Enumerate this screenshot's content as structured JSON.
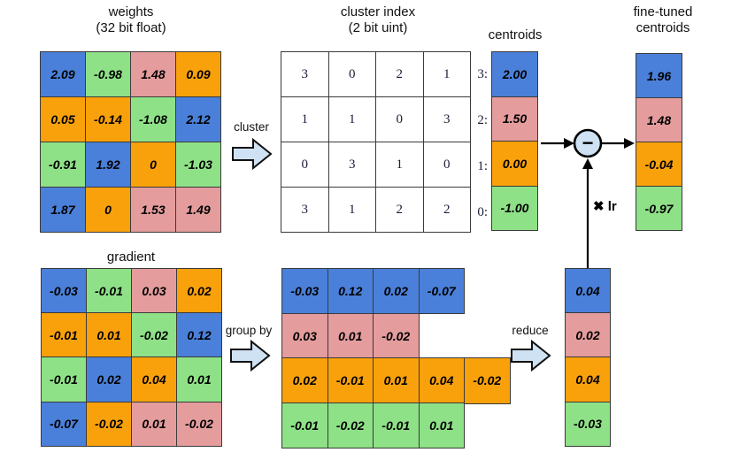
{
  "colors": {
    "blue": "#4a80d9",
    "green": "#8ee187",
    "pink": "#e49c9d",
    "orange": "#f9a10b",
    "arrow_fill": "#cfe2f3",
    "line": "#3a3a3a"
  },
  "titles": {
    "weights_line1": "weights",
    "weights_line2": "(32 bit float)",
    "cluster_line1": "cluster index",
    "cluster_line2": "(2 bit uint)",
    "centroids": "centroids",
    "finetuned_line1": "fine-tuned",
    "finetuned_line2": "centroids",
    "gradient": "gradient"
  },
  "arrow_labels": {
    "cluster": "cluster",
    "group_by": "group by",
    "reduce": "reduce",
    "lr": "✖ lr"
  },
  "operator": {
    "minus": "−"
  },
  "weights": {
    "values": [
      [
        "2.09",
        "-0.98",
        "1.48",
        "0.09"
      ],
      [
        "0.05",
        "-0.14",
        "-1.08",
        "2.12"
      ],
      [
        "-0.91",
        "1.92",
        "0",
        "-1.03"
      ],
      [
        "1.87",
        "0",
        "1.53",
        "1.49"
      ]
    ],
    "colors": [
      [
        "blue",
        "green",
        "pink",
        "orange"
      ],
      [
        "orange",
        "orange",
        "green",
        "blue"
      ],
      [
        "green",
        "blue",
        "orange",
        "green"
      ],
      [
        "blue",
        "orange",
        "pink",
        "pink"
      ]
    ]
  },
  "cluster_index": {
    "values": [
      [
        "3",
        "0",
        "2",
        "1"
      ],
      [
        "1",
        "1",
        "0",
        "3"
      ],
      [
        "0",
        "3",
        "1",
        "0"
      ],
      [
        "3",
        "1",
        "2",
        "2"
      ]
    ]
  },
  "centroids": {
    "indices": [
      "3:",
      "2:",
      "1:",
      "0:"
    ],
    "values": [
      "2.00",
      "1.50",
      "0.00",
      "-1.00"
    ],
    "colors": [
      "blue",
      "pink",
      "orange",
      "green"
    ]
  },
  "fine_tuned_centroids": {
    "values": [
      "1.96",
      "1.48",
      "-0.04",
      "-0.97"
    ],
    "colors": [
      "blue",
      "pink",
      "orange",
      "green"
    ]
  },
  "gradient": {
    "values": [
      [
        "-0.03",
        "-0.01",
        "0.03",
        "0.02"
      ],
      [
        "-0.01",
        "0.01",
        "-0.02",
        "0.12"
      ],
      [
        "-0.01",
        "0.02",
        "0.04",
        "0.01"
      ],
      [
        "-0.07",
        "-0.02",
        "0.01",
        "-0.02"
      ]
    ],
    "colors": [
      [
        "blue",
        "green",
        "pink",
        "orange"
      ],
      [
        "orange",
        "orange",
        "green",
        "blue"
      ],
      [
        "green",
        "blue",
        "orange",
        "green"
      ],
      [
        "blue",
        "orange",
        "pink",
        "pink"
      ]
    ]
  },
  "grouped_gradient": {
    "rows": [
      {
        "color": "blue",
        "values": [
          "-0.03",
          "0.12",
          "0.02",
          "-0.07"
        ]
      },
      {
        "color": "pink",
        "values": [
          "0.03",
          "0.01",
          "-0.02"
        ]
      },
      {
        "color": "orange",
        "values": [
          "0.02",
          "-0.01",
          "0.01",
          "0.04",
          "-0.02"
        ]
      },
      {
        "color": "green",
        "values": [
          "-0.01",
          "-0.02",
          "-0.01",
          "0.01"
        ]
      }
    ]
  },
  "reduced_gradient": {
    "values": [
      "0.04",
      "0.02",
      "0.04",
      "-0.03"
    ],
    "colors": [
      "blue",
      "pink",
      "orange",
      "green"
    ]
  }
}
